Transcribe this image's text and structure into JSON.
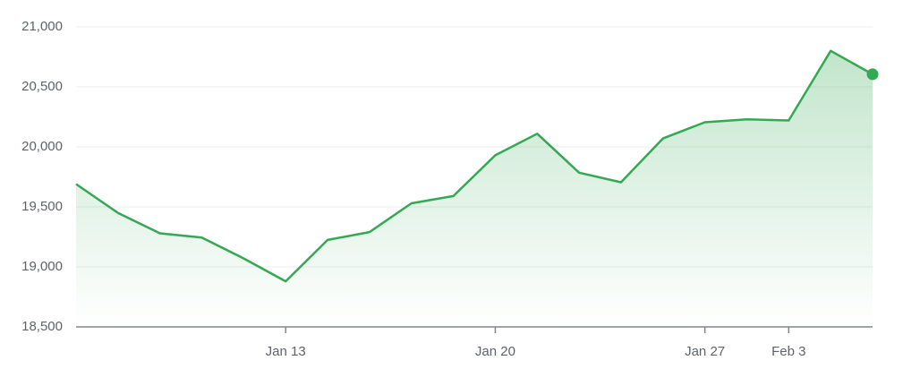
{
  "chart_data": {
    "type": "line",
    "categories": [
      null,
      null,
      null,
      null,
      null,
      "Jan 13",
      null,
      null,
      null,
      null,
      "Jan 20",
      null,
      null,
      null,
      null,
      "Jan 27",
      null,
      "Feb 3",
      null,
      null
    ],
    "series": [
      {
        "color": "#34a853",
        "values": [
          19690,
          19450,
          19280,
          19245,
          19070,
          18880,
          19225,
          19290,
          19530,
          19590,
          19930,
          20110,
          19785,
          19705,
          20070,
          20205,
          20230,
          20220,
          20800,
          20605
        ]
      }
    ],
    "ylim": [
      18500,
      21000
    ],
    "yticks": [
      {
        "value": 18500,
        "label": "18,500"
      },
      {
        "value": 19000,
        "label": "19,000"
      },
      {
        "value": 19500,
        "label": "19,500"
      },
      {
        "value": 20000,
        "label": "20,000"
      },
      {
        "value": 20500,
        "label": "20,500"
      },
      {
        "value": 21000,
        "label": "21,000"
      }
    ],
    "grid": true
  }
}
